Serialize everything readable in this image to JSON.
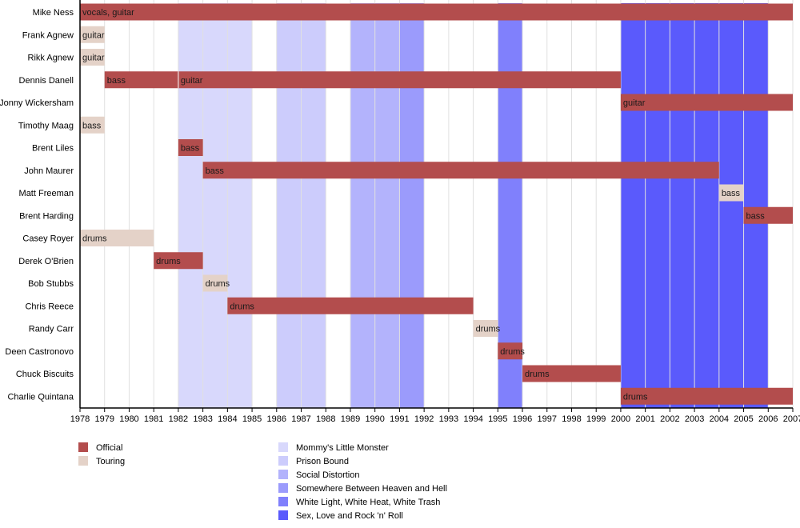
{
  "chart_data": {
    "type": "timeline",
    "title": "",
    "x_axis": {
      "min": 1978,
      "max": 2007,
      "tick_step": 1
    },
    "colors": {
      "official": "#b34d4d",
      "touring": "#e4d2c8",
      "grid": "#e0e0e0",
      "axis": "#000000"
    },
    "members": [
      {
        "name": "Mike Ness",
        "periods": [
          {
            "start": 1978,
            "end": 2007,
            "role": "vocals, guitar",
            "type": "official"
          }
        ]
      },
      {
        "name": "Frank Agnew",
        "periods": [
          {
            "start": 1978,
            "end": 1979,
            "role": "guitar",
            "type": "touring"
          }
        ]
      },
      {
        "name": "Rikk Agnew",
        "periods": [
          {
            "start": 1978,
            "end": 1979,
            "role": "guitar",
            "type": "touring"
          }
        ]
      },
      {
        "name": "Dennis Danell",
        "periods": [
          {
            "start": 1979,
            "end": 1982,
            "role": "bass",
            "type": "official"
          },
          {
            "start": 1982,
            "end": 2000,
            "role": "guitar",
            "type": "official"
          }
        ]
      },
      {
        "name": "Jonny Wickersham",
        "periods": [
          {
            "start": 2000,
            "end": 2007,
            "role": "guitar",
            "type": "official"
          }
        ]
      },
      {
        "name": "Timothy Maag",
        "periods": [
          {
            "start": 1978,
            "end": 1979,
            "role": "bass",
            "type": "touring"
          }
        ]
      },
      {
        "name": "Brent Liles",
        "periods": [
          {
            "start": 1982,
            "end": 1983,
            "role": "bass",
            "type": "official"
          }
        ]
      },
      {
        "name": "John Maurer",
        "periods": [
          {
            "start": 1983,
            "end": 2004,
            "role": "bass",
            "type": "official"
          }
        ]
      },
      {
        "name": "Matt Freeman",
        "periods": [
          {
            "start": 2004,
            "end": 2005,
            "role": "bass",
            "type": "touring"
          }
        ]
      },
      {
        "name": "Brent Harding",
        "periods": [
          {
            "start": 2005,
            "end": 2007,
            "role": "bass",
            "type": "official"
          }
        ]
      },
      {
        "name": "Casey Royer",
        "periods": [
          {
            "start": 1978,
            "end": 1981,
            "role": "drums",
            "type": "touring"
          }
        ]
      },
      {
        "name": "Derek O'Brien",
        "periods": [
          {
            "start": 1981,
            "end": 1983,
            "role": "drums",
            "type": "official"
          }
        ]
      },
      {
        "name": "Bob Stubbs",
        "periods": [
          {
            "start": 1983,
            "end": 1984,
            "role": "drums",
            "type": "touring"
          }
        ]
      },
      {
        "name": "Chris Reece",
        "periods": [
          {
            "start": 1984,
            "end": 1994,
            "role": "drums",
            "type": "official"
          }
        ]
      },
      {
        "name": "Randy Carr",
        "periods": [
          {
            "start": 1994,
            "end": 1995,
            "role": "drums",
            "type": "touring"
          }
        ]
      },
      {
        "name": "Deen Castronovo",
        "periods": [
          {
            "start": 1995,
            "end": 1996,
            "role": "drums",
            "type": "official"
          }
        ]
      },
      {
        "name": "Chuck Biscuits",
        "periods": [
          {
            "start": 1996,
            "end": 2000,
            "role": "drums",
            "type": "official"
          }
        ]
      },
      {
        "name": "Charlie Quintana",
        "periods": [
          {
            "start": 2000,
            "end": 2007,
            "role": "drums",
            "type": "official"
          }
        ]
      }
    ],
    "albums": [
      {
        "name": "Mommy's Little Monster",
        "start": 1982,
        "end": 1985,
        "color": "#d8d8fc"
      },
      {
        "name": "Prison Bound",
        "start": 1986,
        "end": 1988,
        "color": "#ccccfc"
      },
      {
        "name": "Social Distortion",
        "start": 1989,
        "end": 1991,
        "color": "#b3b3fc"
      },
      {
        "name": "Somewhere Between Heaven and Hell",
        "start": 1991,
        "end": 1992,
        "color": "#9b9bfc"
      },
      {
        "name": "White Light, White Heat, White Trash",
        "start": 1995,
        "end": 1996,
        "color": "#8080fc"
      },
      {
        "name": "Sex, Love and Rock 'n' Roll",
        "start": 2000,
        "end": 2006,
        "color": "#5a5afc"
      }
    ],
    "legend": {
      "status": [
        {
          "label": "Official",
          "type": "official"
        },
        {
          "label": "Touring",
          "type": "touring"
        }
      ]
    }
  }
}
